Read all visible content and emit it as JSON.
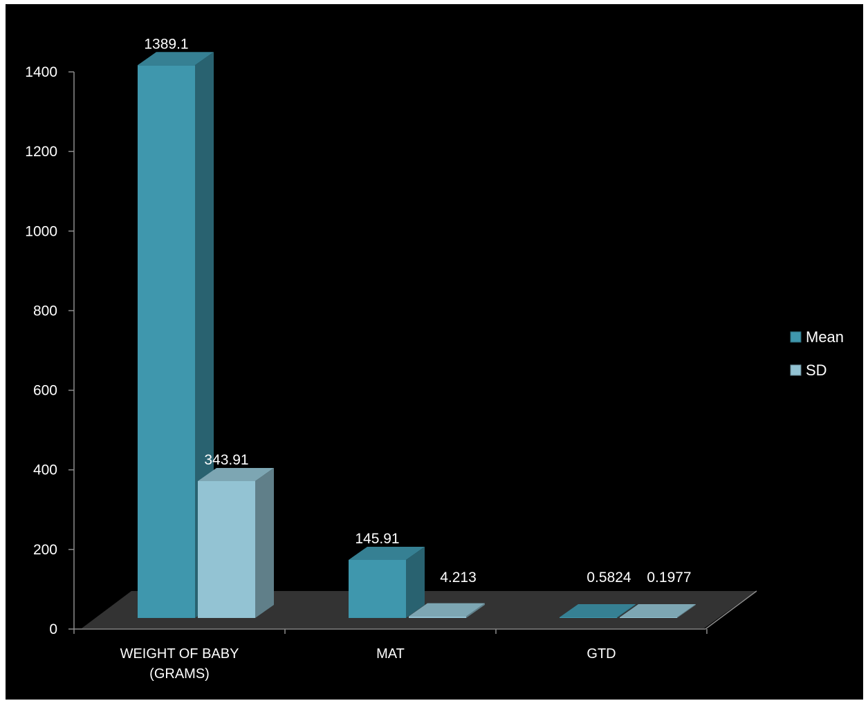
{
  "chart_data": {
    "type": "bar",
    "categories": [
      [
        "WEIGHT OF BABY",
        "(GRAMS)"
      ],
      [
        "MAT"
      ],
      [
        "GTD"
      ]
    ],
    "series": [
      {
        "name": "Mean",
        "values": [
          1389.1,
          145.91,
          0.5824
        ],
        "labels": [
          "1389.1",
          "145.91",
          "0.5824"
        ],
        "color": "#3f97ad"
      },
      {
        "name": "SD",
        "values": [
          343.91,
          4.213,
          0.1977
        ],
        "labels": [
          "343.91",
          "4.213",
          "0.1977"
        ],
        "color": "#93c3d3"
      }
    ],
    "ylim": [
      0,
      1400
    ],
    "yticks": [
      0,
      200,
      400,
      600,
      800,
      1000,
      1200,
      1400
    ],
    "legend_position": "right",
    "background": "#000000",
    "floor_color": "#333333"
  }
}
